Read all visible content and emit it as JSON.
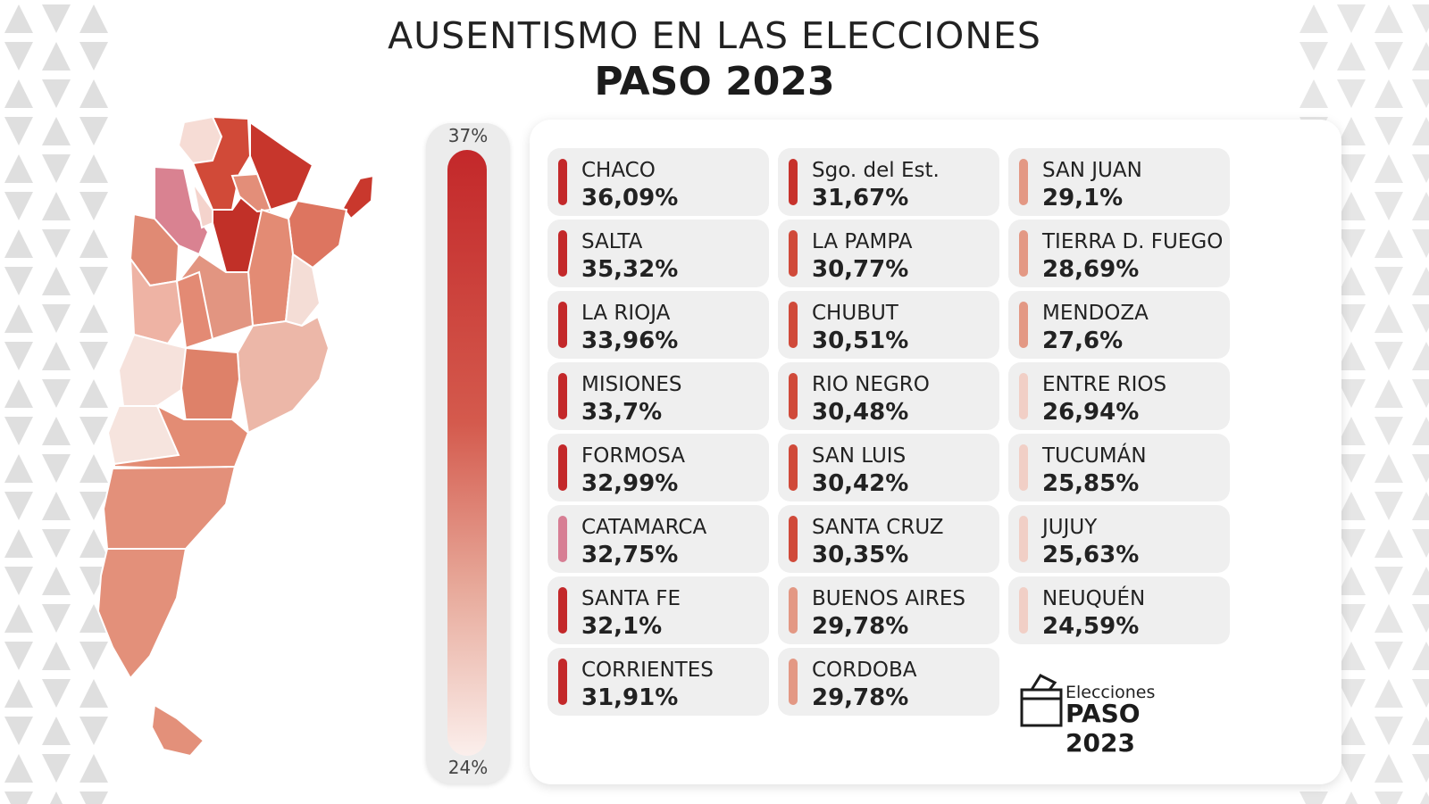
{
  "title": {
    "line1": "AUSENTISMO EN LAS ELECCIONES",
    "line2": "PASO 2023"
  },
  "legend": {
    "max_label": "37%",
    "min_label": "24%",
    "color_high": "#c3282a",
    "color_low": "#fbefec"
  },
  "brand": {
    "small": "Elecciones",
    "big": "PASO 2023"
  },
  "chart_data": {
    "type": "table",
    "title": "AUSENTISMO EN LAS ELECCIONES PASO 2023",
    "columns": [
      [
        {
          "name": "CHACO",
          "value": "36,09%",
          "color": "#c3282a"
        },
        {
          "name": "SALTA",
          "value": "35,32%",
          "color": "#c3282a"
        },
        {
          "name": "LA RIOJA",
          "value": "33,96%",
          "color": "#c3282a"
        },
        {
          "name": "MISIONES",
          "value": "33,7%",
          "color": "#c3282a"
        },
        {
          "name": "FORMOSA",
          "value": "32,99%",
          "color": "#c3282a"
        },
        {
          "name": "CATAMARCA",
          "value": "32,75%",
          "color": "#d77e94"
        },
        {
          "name": "SANTA FE",
          "value": "32,1%",
          "color": "#c3282a"
        },
        {
          "name": "CORRIENTES",
          "value": "31,91%",
          "color": "#c3282a"
        }
      ],
      [
        {
          "name": "Sgo. del Est.",
          "value": "31,67%",
          "color": "#c7322c"
        },
        {
          "name": "LA PAMPA",
          "value": "30,77%",
          "color": "#d04a3a"
        },
        {
          "name": "CHUBUT",
          "value": "30,51%",
          "color": "#d04a3a"
        },
        {
          "name": "RIO NEGRO",
          "value": "30,48%",
          "color": "#d04a3a"
        },
        {
          "name": "SAN LUIS",
          "value": "30,42%",
          "color": "#d04a3a"
        },
        {
          "name": "SANTA CRUZ",
          "value": "30,35%",
          "color": "#d04a3a"
        },
        {
          "name": "BUENOS AIRES",
          "value": "29,78%",
          "color": "#e39884"
        },
        {
          "name": "CORDOBA",
          "value": "29,78%",
          "color": "#e39884"
        }
      ],
      [
        {
          "name": "SAN JUAN",
          "value": "29,1%",
          "color": "#e39884"
        },
        {
          "name": "TIERRA D. FUEGO",
          "value": "28,69%",
          "color": "#e39884"
        },
        {
          "name": "MENDOZA",
          "value": "27,6%",
          "color": "#e39884"
        },
        {
          "name": "ENTRE RIOS",
          "value": "26,94%",
          "color": "#f1cfc6"
        },
        {
          "name": "TUCUMÁN",
          "value": "25,85%",
          "color": "#f1cfc6"
        },
        {
          "name": "JUJUY",
          "value": "25,63%",
          "color": "#f1cfc6"
        },
        {
          "name": "NEUQUÉN",
          "value": "24,59%",
          "color": "#f1cfc6"
        }
      ]
    ],
    "scale": {
      "min": 24,
      "max": 37
    }
  }
}
